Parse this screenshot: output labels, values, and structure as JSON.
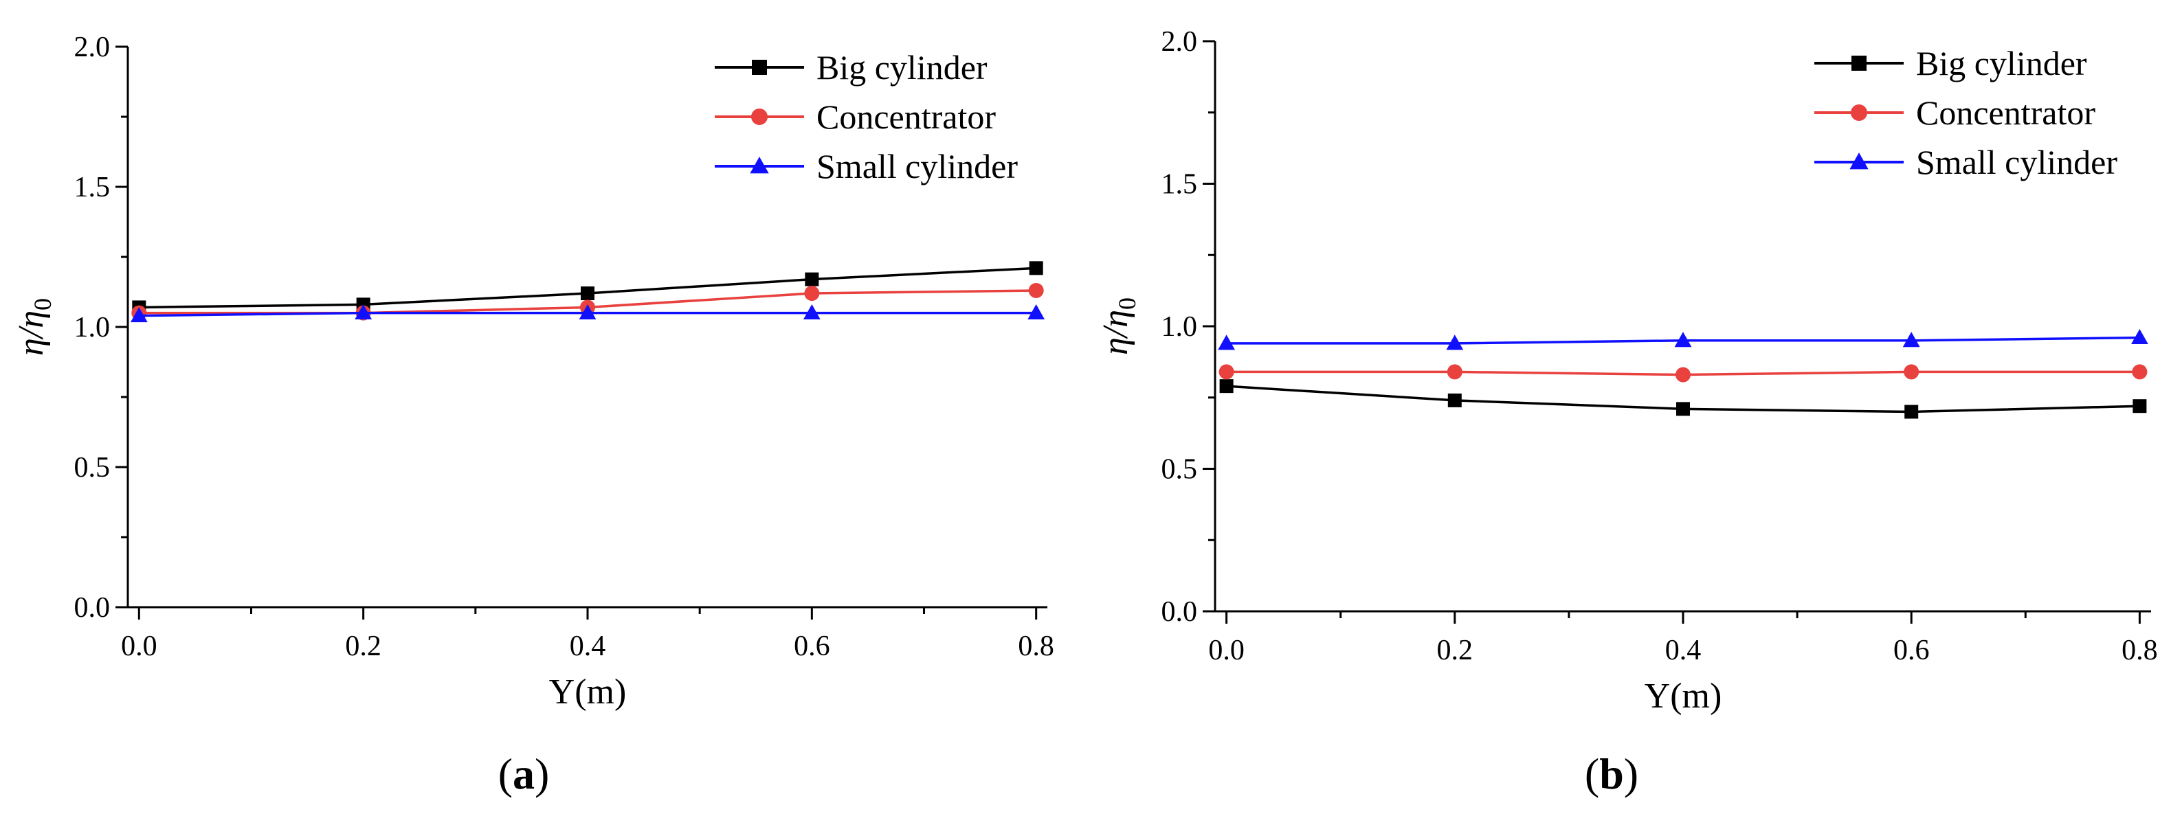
{
  "chart_data": [
    {
      "type": "line",
      "panel_label": "a",
      "x": [
        0.0,
        0.2,
        0.4,
        0.6,
        0.8
      ],
      "xlim": [
        -0.01,
        0.81
      ],
      "ylim": [
        0,
        2.0
      ],
      "x_ticks": [
        "0.0",
        "0.2",
        "0.4",
        "0.6",
        "0.8"
      ],
      "y_ticks": [
        "0.0",
        "0.5",
        "1.0",
        "1.5",
        "2.0"
      ],
      "xlabel": "Y(m)",
      "ylabel": "η/η0",
      "grid": false,
      "legend_position": "top-right",
      "series": [
        {
          "name": "Big cylinder",
          "color": "#000000",
          "marker": "square",
          "values": [
            1.07,
            1.08,
            1.12,
            1.17,
            1.21
          ]
        },
        {
          "name": "Concentrator",
          "color": "#e8413e",
          "marker": "circle",
          "values": [
            1.05,
            1.05,
            1.07,
            1.12,
            1.13
          ]
        },
        {
          "name": "Small cylinder",
          "color": "#1010ff",
          "marker": "triangle",
          "values": [
            1.04,
            1.05,
            1.05,
            1.05,
            1.05
          ]
        }
      ]
    },
    {
      "type": "line",
      "panel_label": "b",
      "x": [
        0.0,
        0.2,
        0.4,
        0.6,
        0.8
      ],
      "xlim": [
        -0.01,
        0.81
      ],
      "ylim": [
        0,
        2.0
      ],
      "x_ticks": [
        "0.0",
        "0.2",
        "0.4",
        "0.6",
        "0.8"
      ],
      "y_ticks": [
        "0.0",
        "0.5",
        "1.0",
        "1.5",
        "2.0"
      ],
      "xlabel": "Y(m)",
      "ylabel": "η/η0",
      "grid": false,
      "legend_position": "top-right",
      "series": [
        {
          "name": "Big cylinder",
          "color": "#000000",
          "marker": "square",
          "values": [
            0.79,
            0.74,
            0.71,
            0.7,
            0.72
          ]
        },
        {
          "name": "Concentrator",
          "color": "#e8413e",
          "marker": "circle",
          "values": [
            0.84,
            0.84,
            0.83,
            0.84,
            0.84
          ]
        },
        {
          "name": "Small cylinder",
          "color": "#1010ff",
          "marker": "triangle",
          "values": [
            0.94,
            0.94,
            0.95,
            0.95,
            0.96
          ]
        }
      ]
    }
  ]
}
